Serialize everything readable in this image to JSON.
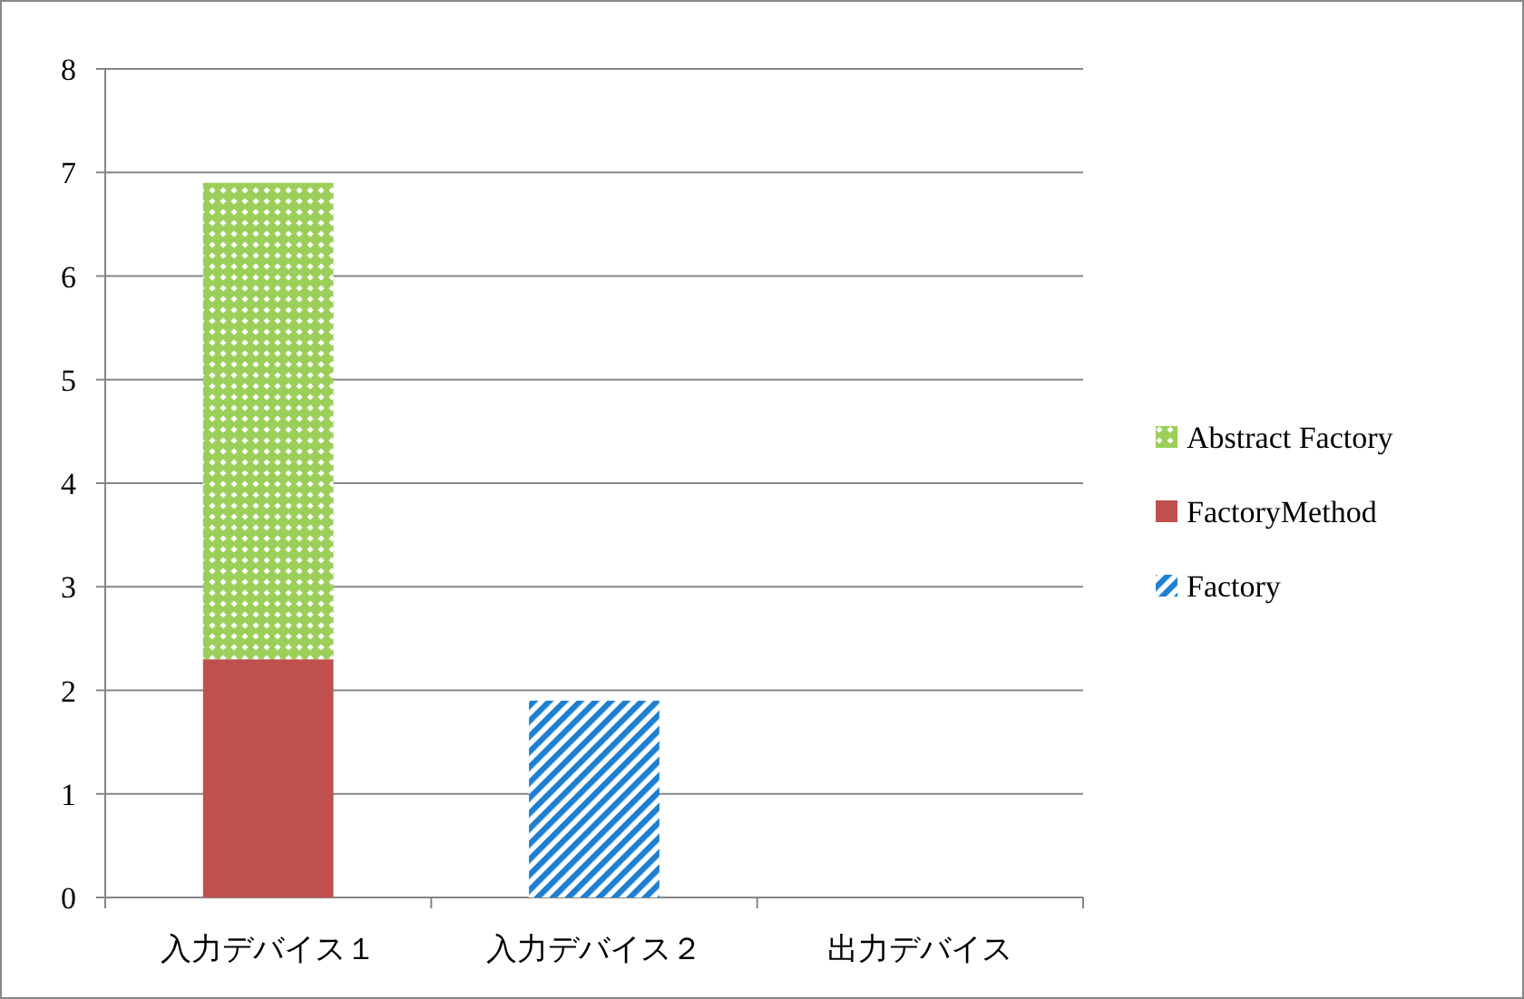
{
  "chart_data": {
    "type": "bar",
    "stacked": true,
    "categories": [
      "入力デバイス１",
      "入力デバイス２",
      "出力デバイス"
    ],
    "series": [
      {
        "name": "Factory",
        "color": "#1f7fd0",
        "values": [
          null,
          1.9,
          null
        ]
      },
      {
        "name": "FactoryMethod",
        "color": "#c0504d",
        "values": [
          2.3,
          null,
          null
        ]
      },
      {
        "name": "Abstract Factory",
        "color": "#9bcf5a",
        "values": [
          4.6,
          null,
          null
        ]
      }
    ],
    "ylim": [
      0,
      8
    ],
    "yticks": [
      0,
      1,
      2,
      3,
      4,
      5,
      6,
      7,
      8
    ],
    "grid": "y",
    "legend": "right"
  }
}
